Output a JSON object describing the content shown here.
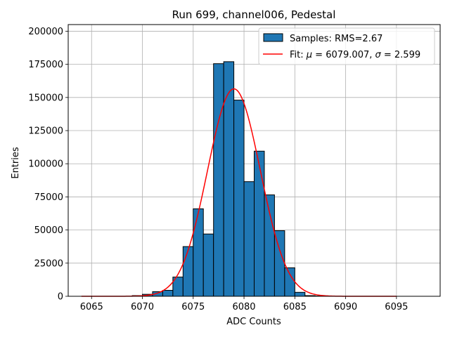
{
  "chart_data": {
    "type": "bar",
    "title": "Run 699, channel006, Pedestal",
    "xlabel": "ADC Counts",
    "ylabel": "Entries",
    "xlim": [
      6062.7,
      6099.3
    ],
    "ylim": [
      0,
      205000
    ],
    "xticks": [
      6065,
      6070,
      6075,
      6080,
      6085,
      6090,
      6095
    ],
    "yticks": [
      0,
      25000,
      50000,
      75000,
      100000,
      125000,
      150000,
      175000,
      200000
    ],
    "grid": true,
    "legend_position": "top-right",
    "histogram": {
      "name": "Samples: RMS=2.67",
      "color": "#1f77b4",
      "edge_color": "#000000",
      "bin_edges": [
        6069,
        6070,
        6071,
        6072,
        6073,
        6074,
        6075,
        6076,
        6077,
        6078,
        6079,
        6080,
        6081,
        6082,
        6083,
        6084,
        6085,
        6086,
        6087,
        6088
      ],
      "counts": [
        500,
        1500,
        3500,
        4500,
        14500,
        37500,
        66000,
        47000,
        175500,
        177000,
        148000,
        86500,
        109500,
        76500,
        49500,
        21500,
        3000,
        500,
        200
      ]
    },
    "fit": {
      "label_prefix": "Fit: ",
      "mu_symbol": "μ",
      "mu_value": " = 6079.007, ",
      "sigma_symbol": "σ",
      "sigma_value": " = 2.599",
      "color": "#ff0000",
      "mu": 6079.007,
      "sigma": 2.599,
      "amplitude": 156500,
      "x_range": [
        6064,
        6095
      ]
    }
  }
}
